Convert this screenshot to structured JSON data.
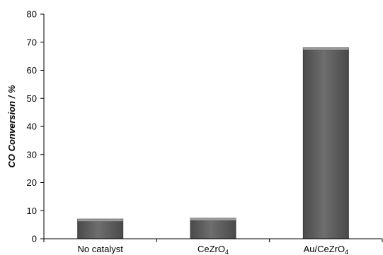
{
  "chart_data": {
    "type": "bar",
    "title": "",
    "xlabel": "",
    "ylabel": "CO Conversion / %",
    "categories": [
      "No catalyst",
      "CeZrO4",
      "Au/CeZrO4"
    ],
    "category_labels": [
      {
        "main": "No catalyst",
        "sub": ""
      },
      {
        "main": "CeZrO",
        "sub": "4"
      },
      {
        "main": "Au/CeZrO",
        "sub": "4"
      }
    ],
    "values": [
      7,
      7.3,
      68
    ],
    "ylim": [
      0,
      80
    ],
    "yticks": [
      "0",
      "10",
      "20",
      "30",
      "40",
      "50",
      "60",
      "70",
      "80"
    ],
    "grid": false,
    "legend": "none",
    "colors": {
      "bar": "#5e5e5e",
      "bar_edge": "#3c3c3c",
      "bar_top": "#9a9a9a",
      "axis": "#000000"
    }
  }
}
